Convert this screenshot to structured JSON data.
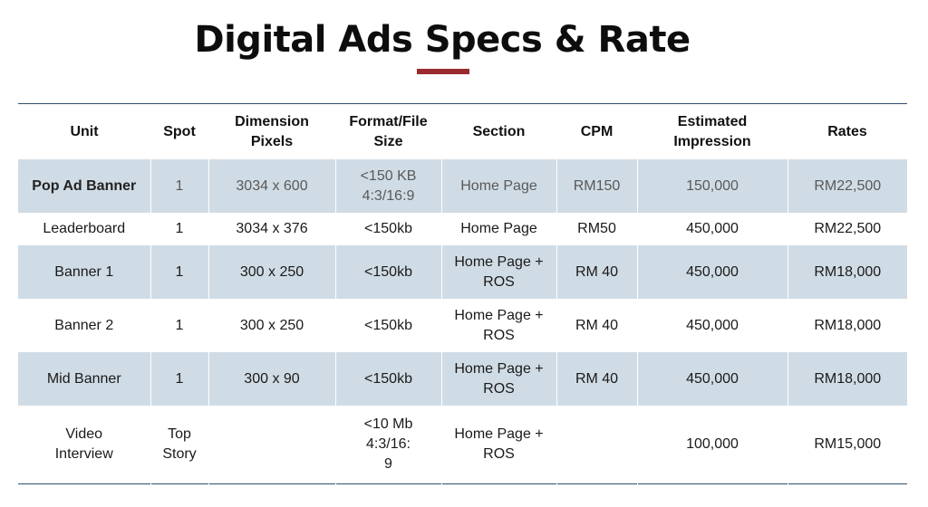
{
  "title": "Digital Ads Specs & Rate",
  "table": {
    "headers": [
      [
        "Unit"
      ],
      [
        "Spot"
      ],
      [
        "Dimension",
        "Pixels"
      ],
      [
        "Format/File",
        "Size"
      ],
      [
        "Section"
      ],
      [
        "CPM"
      ],
      [
        "Estimated",
        "Impression"
      ],
      [
        "Rates"
      ]
    ],
    "rows": [
      {
        "unit": [
          "Pop Ad Banner"
        ],
        "spot": [
          "1"
        ],
        "dimension": [
          "3034 x 600"
        ],
        "format": [
          "<150 KB",
          "4:3/16:9"
        ],
        "section": [
          "Home Page"
        ],
        "cpm": [
          "RM150"
        ],
        "impression": [
          "150,000"
        ],
        "rates": [
          "RM22,500"
        ]
      },
      {
        "unit": [
          "Leaderboard"
        ],
        "spot": [
          "1"
        ],
        "dimension": [
          "3034 x 376"
        ],
        "format": [
          "<150kb"
        ],
        "section": [
          "Home Page"
        ],
        "cpm": [
          "RM50"
        ],
        "impression": [
          "450,000"
        ],
        "rates": [
          "RM22,500"
        ]
      },
      {
        "unit": [
          "Banner 1"
        ],
        "spot": [
          "1"
        ],
        "dimension": [
          "300 x 250"
        ],
        "format": [
          "<150kb"
        ],
        "section": [
          "Home Page +",
          "ROS"
        ],
        "cpm": [
          "RM 40"
        ],
        "impression": [
          "450,000"
        ],
        "rates": [
          "RM18,000"
        ]
      },
      {
        "unit": [
          "Banner 2"
        ],
        "spot": [
          "1"
        ],
        "dimension": [
          "300 x 250"
        ],
        "format": [
          "<150kb"
        ],
        "section": [
          "Home Page +",
          "ROS"
        ],
        "cpm": [
          "RM 40"
        ],
        "impression": [
          "450,000"
        ],
        "rates": [
          "RM18,000"
        ]
      },
      {
        "unit": [
          "Mid Banner"
        ],
        "spot": [
          "1"
        ],
        "dimension": [
          "300 x 90"
        ],
        "format": [
          "<150kb"
        ],
        "section": [
          "Home Page +",
          "ROS"
        ],
        "cpm": [
          "RM 40"
        ],
        "impression": [
          "450,000"
        ],
        "rates": [
          "RM18,000"
        ]
      },
      {
        "unit": [
          "Video",
          "Interview"
        ],
        "spot": [
          "Top",
          "Story"
        ],
        "dimension": [],
        "format": [
          "<10 Mb",
          "4:3/16:",
          "9"
        ],
        "section": [
          "Home Page +",
          "ROS"
        ],
        "cpm": [],
        "impression": [
          "100,000"
        ],
        "rates": [
          "RM15,000"
        ]
      }
    ]
  },
  "colors": {
    "accent_underline": "#9b2a2e",
    "row_shade": "#d0dce5",
    "rule": "#2c4f6b"
  }
}
